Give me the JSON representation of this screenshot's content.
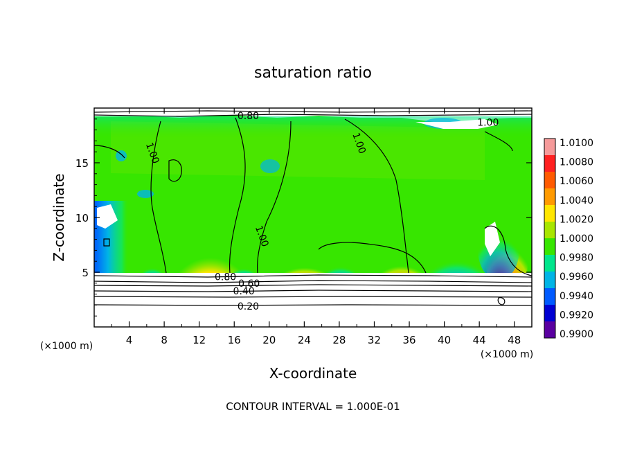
{
  "chart_data": {
    "type": "heatmap",
    "title": "saturation ratio",
    "xlabel": "X-coordinate",
    "ylabel": "Z-coordinate",
    "x_unit": "(×1000 m)",
    "y_unit": "(×1000 m)",
    "xlim": [
      0,
      50
    ],
    "ylim": [
      0,
      20
    ],
    "x_ticks": [
      4,
      8,
      12,
      16,
      20,
      24,
      28,
      32,
      36,
      40,
      44,
      48
    ],
    "y_ticks": [
      5,
      10,
      15
    ],
    "note": "CONTOUR INTERVAL = 1.000E-01",
    "colorbar": {
      "labels": [
        "1.0100",
        "1.0080",
        "1.0060",
        "1.0040",
        "1.0020",
        "1.0000",
        "0.9980",
        "0.9960",
        "0.9940",
        "0.9920",
        "0.9900"
      ],
      "colors": [
        "#f59a9a",
        "#ff2020",
        "#ff5a00",
        "#ff9a00",
        "#ffe600",
        "#a8e600",
        "#37e600",
        "#00e68c",
        "#00b4e6",
        "#005aff",
        "#0000d2",
        "#5a00a0"
      ]
    },
    "contour_labels": [
      {
        "text": "0.80",
        "x": 15,
        "z": 4.6
      },
      {
        "text": "0.60",
        "x": 17.7,
        "z": 4.0
      },
      {
        "text": "0.40",
        "x": 17.1,
        "z": 3.3
      },
      {
        "text": "0.20",
        "x": 17.6,
        "z": 1.9
      },
      {
        "text": "0.80",
        "x": 17.6,
        "z": 19.3
      },
      {
        "text": "1.00",
        "x": 45,
        "z": 18.7
      },
      {
        "text": "1.00",
        "x": 6.7,
        "z": 15.9
      },
      {
        "text": "1.00",
        "x": 30.3,
        "z": 16.8
      },
      {
        "text": "1.00",
        "x": 19.2,
        "z": 8.3
      }
    ]
  }
}
